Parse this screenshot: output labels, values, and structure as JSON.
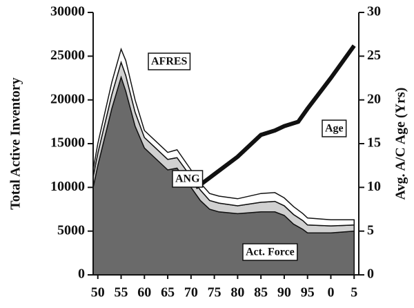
{
  "chart_data": {
    "type": "stacked-area-line",
    "x": [
      1949,
      1950,
      1953,
      1955,
      1956,
      1958,
      1960,
      1962,
      1965,
      1967,
      1970,
      1972,
      1974,
      1976,
      1980,
      1985,
      1988,
      1990,
      1992,
      1994,
      1995,
      2000,
      2005
    ],
    "series": [
      {
        "name": "Act. Force",
        "color": "#6a6a6a",
        "values": [
          10000,
          12500,
          19000,
          22600,
          21000,
          17000,
          14500,
          13500,
          12000,
          12200,
          10000,
          8500,
          7500,
          7200,
          7000,
          7200,
          7200,
          6800,
          5800,
          5200,
          4800,
          4800,
          5000
        ]
      },
      {
        "name": "ANG",
        "color": "#d0d0d0",
        "values": [
          1200,
          1400,
          1600,
          1700,
          1800,
          1600,
          1200,
          1200,
          1200,
          1200,
          1200,
          1200,
          1000,
          1000,
          900,
          1100,
          1200,
          1100,
          1100,
          1000,
          900,
          800,
          700
        ]
      },
      {
        "name": "AFRES",
        "color": "#ffffff",
        "values": [
          800,
          1100,
          1400,
          1500,
          1700,
          1400,
          800,
          800,
          800,
          900,
          800,
          800,
          800,
          800,
          800,
          1000,
          1000,
          900,
          900,
          800,
          800,
          700,
          600
        ]
      },
      {
        "name": "Age",
        "color": "#111111",
        "axis": "y2",
        "x": [
          1971,
          1972,
          1975,
          1980,
          1985,
          1988,
          1990,
          1993,
          1995,
          2000,
          2005
        ],
        "values": [
          10,
          10.3,
          11.5,
          13.5,
          16,
          16.5,
          17,
          17.5,
          19,
          22.5,
          26.2
        ]
      }
    ],
    "ylabel": "Total Active Inventory",
    "y2label": "Avg. A/C Age (Yrs)",
    "xlim": [
      1949,
      2006
    ],
    "xticks": [
      {
        "value": 1950,
        "label": "50"
      },
      {
        "value": 1955,
        "label": "55"
      },
      {
        "value": 1960,
        "label": "60"
      },
      {
        "value": 1965,
        "label": "65"
      },
      {
        "value": 1970,
        "label": "70"
      },
      {
        "value": 1975,
        "label": "75"
      },
      {
        "value": 1980,
        "label": "80"
      },
      {
        "value": 1985,
        "label": "85"
      },
      {
        "value": 1990,
        "label": "90"
      },
      {
        "value": 1995,
        "label": "95"
      },
      {
        "value": 2000,
        "label": "0"
      },
      {
        "value": 2005,
        "label": "5"
      }
    ],
    "ylim": [
      0,
      30000
    ],
    "yticks": [
      0,
      5000,
      10000,
      15000,
      20000,
      25000,
      30000
    ],
    "y2lim": [
      0,
      30
    ],
    "y2ticks": [
      0,
      5,
      10,
      15,
      20,
      25,
      30
    ]
  }
}
